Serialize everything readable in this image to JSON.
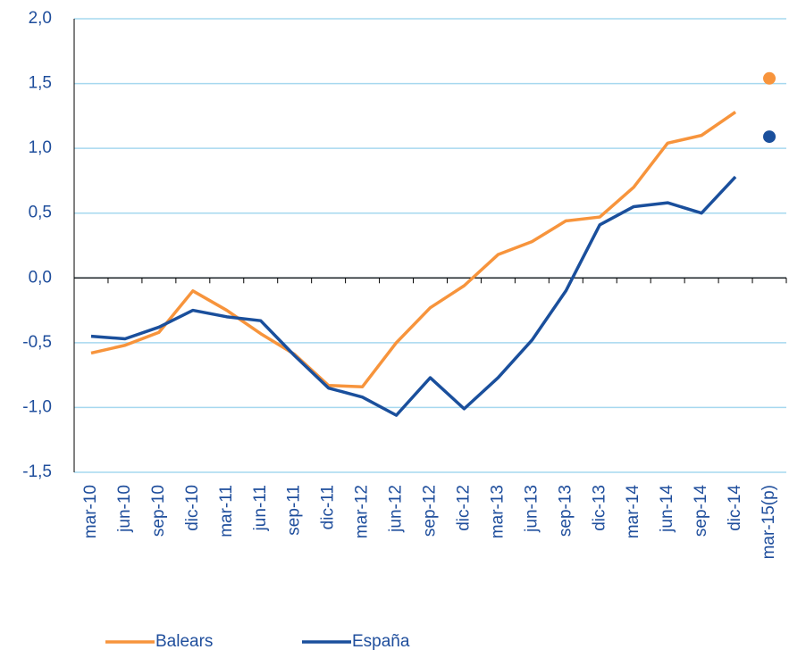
{
  "chart_data": {
    "type": "line",
    "categories": [
      "mar-10",
      "jun-10",
      "sep-10",
      "dic-10",
      "mar-11",
      "jun-11",
      "sep-11",
      "dic-11",
      "mar-12",
      "jun-12",
      "sep-12",
      "dic-12",
      "mar-13",
      "jun-13",
      "sep-13",
      "dic-13",
      "mar-14",
      "jun-14",
      "sep-14",
      "dic-14",
      "mar-15(p)"
    ],
    "series": [
      {
        "name": "Balears",
        "color": "#f7943c",
        "values": [
          -0.58,
          -0.52,
          -0.42,
          -0.1,
          -0.25,
          -0.43,
          -0.59,
          -0.83,
          -0.84,
          -0.5,
          -0.23,
          -0.06,
          0.18,
          0.28,
          0.44,
          0.47,
          0.7,
          1.04,
          1.1,
          1.28,
          null
        ],
        "forecast": 1.54
      },
      {
        "name": "España",
        "color": "#1a4f9c",
        "values": [
          -0.45,
          -0.47,
          -0.38,
          -0.25,
          -0.3,
          -0.33,
          -0.6,
          -0.85,
          -0.92,
          -1.06,
          -0.77,
          -1.01,
          -0.77,
          -0.48,
          -0.1,
          0.41,
          0.55,
          0.58,
          0.5,
          0.78,
          null
        ],
        "forecast": 1.09
      }
    ],
    "ylim": [
      -1.5,
      2.0
    ],
    "yticks": [
      {
        "value": -1.5,
        "label": "-1,5"
      },
      {
        "value": -1.0,
        "label": "-1,0"
      },
      {
        "value": -0.5,
        "label": "-0,5"
      },
      {
        "value": 0,
        "label": "0,0"
      },
      {
        "value": 0.5,
        "label": "0,5"
      },
      {
        "value": 1.0,
        "label": "1,0"
      },
      {
        "value": 1.5,
        "label": "1,5"
      },
      {
        "value": 2.0,
        "label": "2,0"
      }
    ],
    "grid": true,
    "grid_color": "#a6d8ef",
    "text_color": "#1f4e9c",
    "legend": "bottom"
  }
}
